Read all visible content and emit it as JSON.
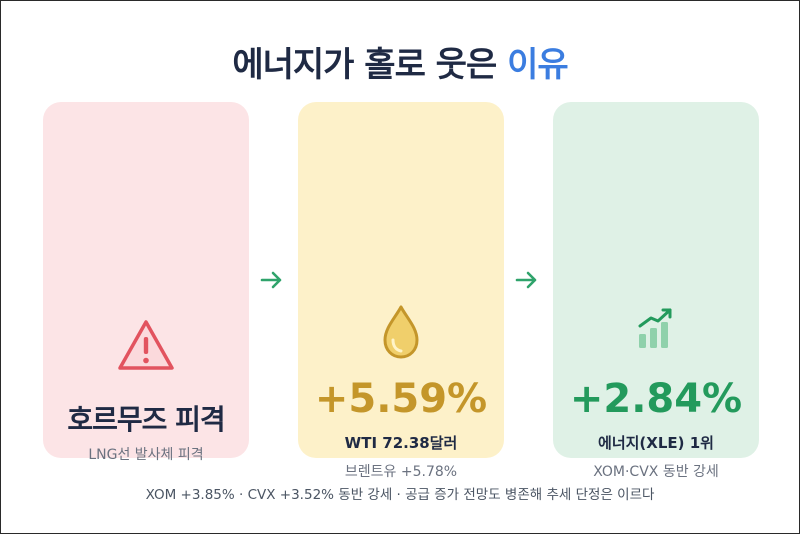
{
  "title": {
    "main": "에너지가 홀로 웃은",
    "accent": "이유"
  },
  "cards": [
    {
      "big": "호르무즈 피격",
      "note": "LNG선 발사체 피격",
      "icon": "warning-icon",
      "accent": "#e2535f"
    },
    {
      "big": "+5.59%",
      "sub": "WTI 72.38달러",
      "note": "브렌트유 +5.78%",
      "icon": "oil-drop-icon",
      "accent": "#c4962a"
    },
    {
      "big": "+2.84%",
      "sub": "에너지(XLE) 1위",
      "note": "XOM·CVX 동반 강세",
      "icon": "chart-up-icon",
      "accent": "#239a5c"
    }
  ],
  "arrows": {
    "color": "#2fa36b",
    "icon": "arrow-right-icon"
  },
  "footer": "XOM +3.85% · CVX +3.52% 동반 강세 · 공급 증가 전망도 병존해 추세 단정은 이르다"
}
